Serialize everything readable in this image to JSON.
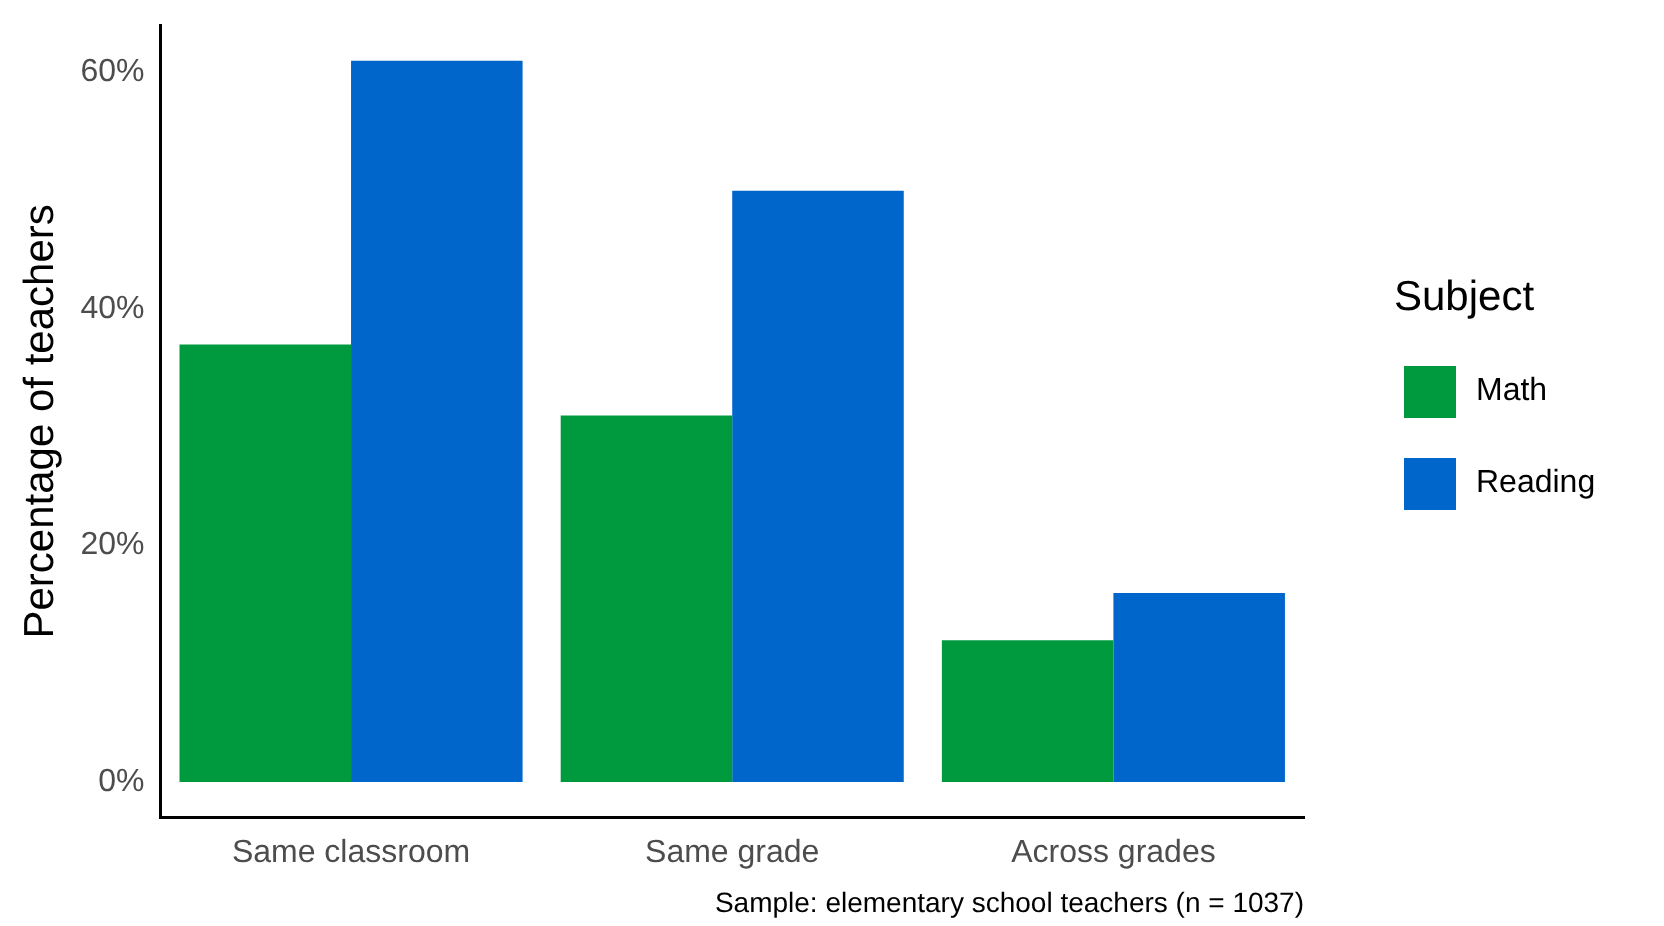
{
  "chart_data": {
    "type": "bar",
    "ylabel": "Percentage of teachers",
    "legend_title": "Subject",
    "categories": [
      "Same classroom",
      "Same grade",
      "Across grades"
    ],
    "series": [
      {
        "name": "Math",
        "color": "#009a3e",
        "values": [
          37,
          31,
          12
        ]
      },
      {
        "name": "Reading",
        "color": "#0066cc",
        "values": [
          61,
          50,
          16
        ]
      }
    ],
    "ylim": [
      -3,
      64
    ],
    "yticks": [
      {
        "value": 0,
        "label": "0%"
      },
      {
        "value": 20,
        "label": "20%"
      },
      {
        "value": 40,
        "label": "40%"
      },
      {
        "value": 60,
        "label": "60%"
      }
    ],
    "grid": false,
    "legend": "right",
    "annotations": [
      "Sample: elementary school teachers (n = 1037)"
    ]
  }
}
